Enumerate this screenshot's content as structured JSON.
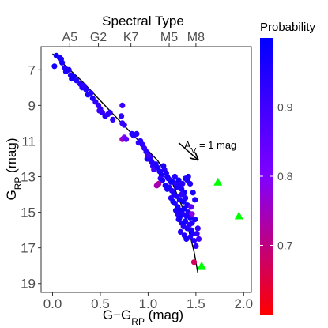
{
  "chart_data": {
    "type": "scatter",
    "top_axis": {
      "title": "Spectral Type",
      "ticks": [
        {
          "label": "A5",
          "x": 0.18
        },
        {
          "label": "G2",
          "x": 0.48
        },
        {
          "label": "K7",
          "x": 0.82
        },
        {
          "label": "M5",
          "x": 1.22
        },
        {
          "label": "M8",
          "x": 1.5
        }
      ]
    },
    "xlabel_main": "G−G",
    "xlabel_sub": "RP",
    "xlabel_unit": " (mag)",
    "ylabel_main": "G",
    "ylabel_sub": "RP",
    "ylabel_unit": " (mag)",
    "xlim": [
      -0.12,
      2.08
    ],
    "ylim": [
      19.5,
      5.7
    ],
    "y_inverted": true,
    "xticks": [
      0.0,
      0.5,
      1.0,
      1.5,
      2.0
    ],
    "xtick_labels": [
      "0.0",
      "0.5",
      "1.0",
      "1.5",
      "2.0"
    ],
    "yticks": [
      7,
      9,
      11,
      13,
      15,
      17,
      19
    ],
    "ytick_labels": [
      "7",
      "9",
      "11",
      "13",
      "15",
      "17",
      "19"
    ],
    "grid": false,
    "colorbar": {
      "title": "Probability",
      "range": [
        0.6,
        1.0
      ],
      "ticks": [
        0.7,
        0.8,
        0.9
      ],
      "tick_labels": [
        "0.7",
        "0.8",
        "0.9"
      ],
      "colors": [
        "#ff0000",
        "#8000ff",
        "#0000ff"
      ]
    },
    "annotation": {
      "text_main": "A",
      "text_sub": "V",
      "text_rest": " = 1 mag",
      "arrow_from": [
        1.32,
        11.1
      ],
      "arrow_to": [
        1.52,
        12.05
      ]
    },
    "sequence_line": {
      "color": "#000000",
      "points": [
        [
          0.0,
          6.1
        ],
        [
          0.3,
          7.6
        ],
        [
          0.6,
          9.3
        ],
        [
          0.85,
          10.7
        ],
        [
          1.1,
          12.1
        ],
        [
          1.25,
          13.3
        ],
        [
          1.35,
          14.6
        ],
        [
          1.42,
          15.9
        ],
        [
          1.48,
          17.2
        ],
        [
          1.52,
          18.4
        ]
      ]
    },
    "triangles": {
      "color": "#00ff00",
      "points": [
        [
          1.73,
          13.3
        ],
        [
          1.95,
          15.2
        ],
        [
          1.56,
          18.0
        ]
      ]
    },
    "points": [
      [
        0.04,
        6.2,
        0.98
      ],
      [
        0.07,
        6.3,
        0.97
      ],
      [
        0.09,
        6.4,
        0.96
      ],
      [
        0.02,
        6.8,
        0.97
      ],
      [
        0.1,
        6.6,
        0.97
      ],
      [
        0.13,
        6.9,
        0.95
      ],
      [
        0.14,
        7.1,
        0.96
      ],
      [
        0.19,
        7.3,
        0.95
      ],
      [
        0.2,
        7.5,
        0.96
      ],
      [
        0.22,
        7.4,
        0.97
      ],
      [
        0.25,
        7.6,
        0.95
      ],
      [
        0.29,
        7.8,
        0.94
      ],
      [
        0.31,
        8.0,
        0.95
      ],
      [
        0.33,
        7.9,
        0.93
      ],
      [
        0.37,
        8.4,
        0.96
      ],
      [
        0.4,
        8.3,
        0.94
      ],
      [
        0.42,
        8.6,
        0.95
      ],
      [
        0.45,
        8.8,
        0.93
      ],
      [
        0.48,
        9.0,
        0.92
      ],
      [
        0.5,
        9.2,
        0.93
      ],
      [
        0.52,
        9.4,
        0.92
      ],
      [
        0.55,
        9.6,
        0.94
      ],
      [
        0.49,
        9.3,
        0.91
      ],
      [
        0.73,
        9.0,
        0.91
      ],
      [
        0.72,
        9.6,
        0.93
      ],
      [
        0.73,
        10.0,
        0.92
      ],
      [
        0.75,
        10.1,
        0.92
      ],
      [
        0.73,
        10.9,
        0.75
      ],
      [
        0.75,
        10.8,
        0.8
      ],
      [
        0.77,
        10.9,
        0.85
      ],
      [
        0.85,
        10.7,
        0.93
      ],
      [
        0.88,
        10.6,
        0.94
      ],
      [
        0.9,
        11.1,
        0.92
      ],
      [
        0.96,
        11.4,
        0.91
      ],
      [
        0.98,
        11.6,
        0.94
      ],
      [
        1.02,
        11.9,
        0.92
      ],
      [
        0.99,
        12.0,
        0.96
      ],
      [
        1.03,
        12.1,
        0.94
      ],
      [
        1.0,
        11.8,
        0.9
      ],
      [
        1.05,
        12.4,
        0.93
      ],
      [
        1.06,
        12.6,
        0.89
      ],
      [
        1.1,
        12.5,
        0.96
      ],
      [
        1.12,
        12.7,
        0.95
      ],
      [
        1.14,
        12.9,
        0.97
      ],
      [
        1.13,
        13.1,
        0.93
      ],
      [
        1.15,
        13.2,
        0.96
      ],
      [
        1.11,
        13.4,
        0.72
      ],
      [
        1.09,
        13.5,
        0.74
      ],
      [
        1.17,
        12.6,
        0.94
      ],
      [
        1.19,
        12.8,
        0.96
      ],
      [
        1.2,
        13.0,
        0.95
      ],
      [
        1.21,
        13.1,
        0.97
      ],
      [
        1.23,
        13.2,
        0.94
      ],
      [
        1.24,
        13.3,
        0.96
      ],
      [
        1.26,
        13.3,
        0.98
      ],
      [
        1.28,
        13.0,
        0.95
      ],
      [
        1.29,
        13.4,
        0.93
      ],
      [
        1.3,
        13.6,
        0.96
      ],
      [
        1.32,
        13.2,
        0.97
      ],
      [
        1.33,
        13.5,
        0.95
      ],
      [
        1.35,
        13.7,
        0.96
      ],
      [
        1.36,
        13.4,
        0.94
      ],
      [
        1.38,
        13.9,
        0.97
      ],
      [
        1.22,
        13.6,
        0.95
      ],
      [
        1.25,
        13.8,
        0.94
      ],
      [
        1.27,
        14.0,
        0.96
      ],
      [
        1.3,
        14.1,
        0.95
      ],
      [
        1.33,
        14.3,
        0.97
      ],
      [
        1.35,
        14.0,
        0.93
      ],
      [
        1.37,
        14.4,
        0.98
      ],
      [
        1.39,
        14.2,
        0.95
      ],
      [
        1.41,
        14.6,
        0.96
      ],
      [
        1.28,
        14.5,
        0.94
      ],
      [
        1.31,
        14.7,
        0.96
      ],
      [
        1.34,
        14.9,
        0.97
      ],
      [
        1.36,
        15.1,
        0.95
      ],
      [
        1.38,
        14.8,
        0.98
      ],
      [
        1.4,
        15.2,
        0.96
      ],
      [
        1.42,
        15.0,
        0.94
      ],
      [
        1.44,
        15.3,
        0.97
      ],
      [
        1.45,
        14.7,
        0.85
      ],
      [
        1.46,
        15.1,
        0.78
      ],
      [
        1.32,
        15.4,
        0.95
      ],
      [
        1.35,
        15.6,
        0.96
      ],
      [
        1.37,
        15.8,
        0.94
      ],
      [
        1.39,
        15.5,
        0.97
      ],
      [
        1.41,
        15.9,
        0.95
      ],
      [
        1.43,
        15.7,
        0.93
      ],
      [
        1.45,
        16.0,
        0.96
      ],
      [
        1.47,
        16.2,
        0.97
      ],
      [
        1.34,
        16.1,
        0.94
      ],
      [
        1.38,
        16.3,
        0.95
      ],
      [
        1.4,
        16.5,
        0.96
      ],
      [
        1.44,
        16.4,
        0.94
      ],
      [
        1.48,
        16.6,
        0.95
      ],
      [
        1.51,
        16.2,
        0.92
      ],
      [
        1.5,
        16.9,
        0.93
      ],
      [
        1.42,
        13.0,
        0.96
      ],
      [
        1.44,
        13.4,
        0.95
      ],
      [
        1.47,
        13.9,
        0.96
      ],
      [
        1.49,
        14.3,
        0.95
      ],
      [
        1.18,
        13.5,
        0.97
      ],
      [
        1.2,
        13.7,
        0.96
      ],
      [
        1.24,
        14.2,
        0.94
      ],
      [
        1.26,
        14.4,
        0.97
      ],
      [
        1.29,
        14.9,
        0.96
      ],
      [
        1.31,
        15.1,
        0.94
      ],
      [
        1.33,
        15.3,
        0.97
      ],
      [
        1.46,
        15.6,
        0.95
      ],
      [
        1.49,
        15.4,
        0.96
      ],
      [
        1.52,
        15.9,
        0.93
      ],
      [
        1.53,
        16.5,
        0.9
      ],
      [
        1.48,
        17.8,
        0.67
      ],
      [
        1.41,
        13.2,
        0.97
      ],
      [
        1.39,
        13.1,
        0.95
      ],
      [
        1.16,
        12.4,
        0.96
      ],
      [
        1.08,
        12.3,
        0.95
      ],
      [
        1.04,
        12.2,
        0.94
      ],
      [
        0.94,
        11.2,
        0.93
      ],
      [
        0.92,
        11.0,
        0.94
      ],
      [
        0.83,
        10.6,
        0.95
      ],
      [
        0.63,
        9.8,
        0.93
      ],
      [
        0.6,
        9.4,
        0.94
      ],
      [
        0.58,
        9.5,
        0.92
      ],
      [
        0.35,
        8.1,
        0.95
      ],
      [
        0.17,
        7.0,
        0.96
      ]
    ]
  }
}
